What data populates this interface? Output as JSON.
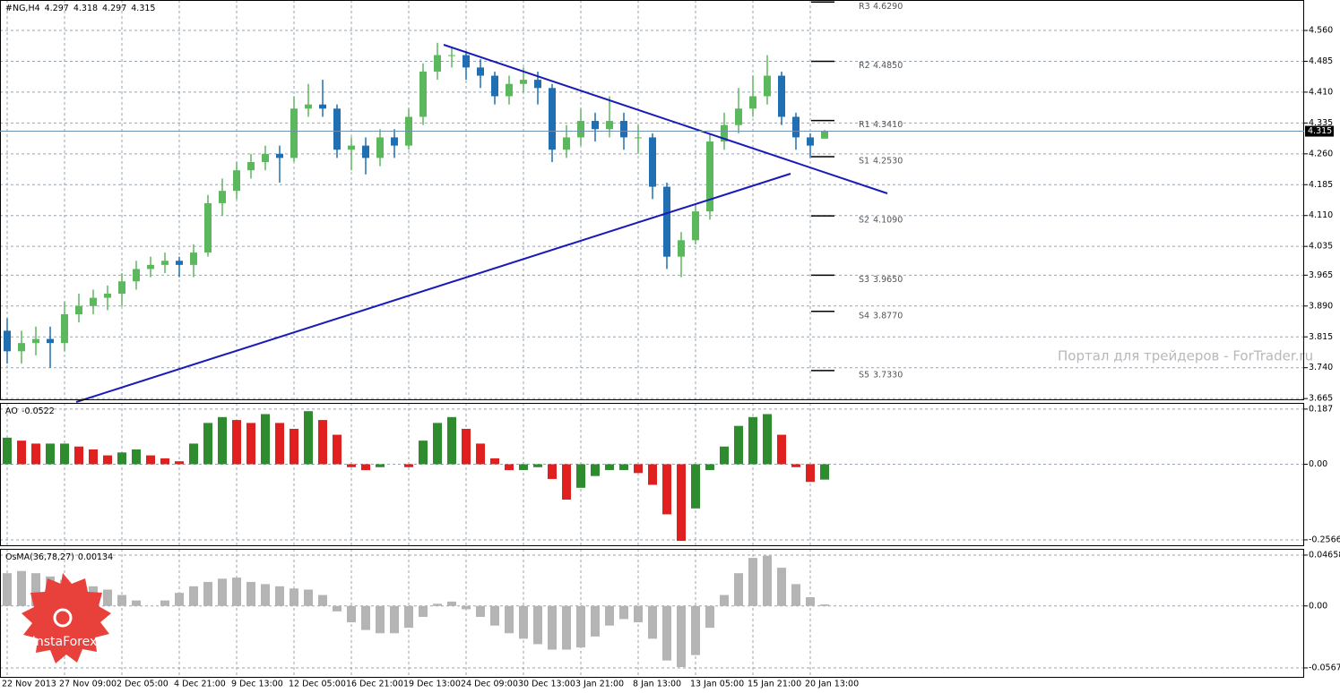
{
  "chart_data": [
    {
      "type": "candlestick",
      "title": "#NG,H4",
      "categories": [
        "22 Nov 2013",
        null,
        null,
        null,
        "27 Nov 09:00",
        null,
        null,
        null,
        "2 Dec 05:00",
        null,
        null,
        null,
        "4 Dec 21:00",
        null,
        null,
        null,
        "9 Dec 13:00",
        null,
        null,
        null,
        "12 Dec 05:00",
        null,
        null,
        null,
        "16 Dec 21:00",
        null,
        null,
        null,
        "19 Dec 13:00",
        null,
        null,
        null,
        "24 Dec 09:00",
        null,
        null,
        null,
        "30 Dec 13:00",
        null,
        null,
        null,
        "3 Jan 21:00",
        null,
        null,
        null,
        "8 Jan 13:00",
        null,
        null,
        null,
        "13 Jan 05:00",
        null,
        null,
        null,
        "15 Jan 21:00",
        null,
        null,
        null,
        "20 Jan 13:00",
        null
      ],
      "open": [
        3.83,
        3.78,
        3.8,
        3.81,
        3.8,
        3.87,
        3.89,
        3.91,
        3.92,
        3.95,
        3.98,
        3.99,
        4.0,
        3.99,
        4.02,
        4.14,
        4.17,
        4.22,
        4.24,
        4.26,
        4.25,
        4.37,
        4.38,
        4.37,
        4.27,
        4.28,
        4.25,
        4.3,
        4.28,
        4.35,
        4.46,
        4.5,
        4.5,
        4.47,
        4.45,
        4.4,
        4.43,
        4.44,
        4.42,
        4.27,
        4.3,
        4.34,
        4.32,
        4.34,
        4.3,
        4.3,
        4.18,
        4.01,
        4.05,
        4.12,
        4.29,
        4.33,
        4.37,
        4.4,
        4.45,
        4.35,
        4.3,
        4.297
      ],
      "high": [
        3.86,
        3.83,
        3.84,
        3.84,
        3.9,
        3.92,
        3.93,
        3.94,
        3.97,
        4.0,
        4.01,
        4.02,
        4.01,
        4.04,
        4.16,
        4.2,
        4.24,
        4.26,
        4.28,
        4.28,
        4.4,
        4.43,
        4.44,
        4.38,
        4.3,
        4.3,
        4.32,
        4.32,
        4.37,
        4.48,
        4.53,
        4.52,
        4.51,
        4.49,
        4.46,
        4.45,
        4.47,
        4.46,
        4.43,
        4.33,
        4.37,
        4.36,
        4.4,
        4.36,
        4.33,
        4.31,
        4.19,
        4.07,
        4.14,
        4.31,
        4.36,
        4.42,
        4.45,
        4.5,
        4.46,
        4.36,
        4.31,
        4.318
      ],
      "low": [
        3.75,
        3.75,
        3.77,
        3.74,
        3.78,
        3.85,
        3.87,
        3.88,
        3.89,
        3.93,
        3.96,
        3.97,
        3.96,
        3.96,
        4.01,
        4.11,
        4.15,
        4.2,
        4.22,
        4.19,
        4.24,
        4.35,
        4.35,
        4.25,
        4.22,
        4.21,
        4.23,
        4.25,
        4.27,
        4.33,
        4.44,
        4.47,
        4.44,
        4.42,
        4.38,
        4.38,
        4.41,
        4.38,
        4.24,
        4.25,
        4.28,
        4.29,
        4.3,
        4.27,
        4.26,
        4.15,
        3.98,
        3.96,
        4.04,
        4.1,
        4.27,
        4.31,
        4.35,
        4.38,
        4.33,
        4.27,
        4.25,
        4.297
      ],
      "close": [
        3.78,
        3.8,
        3.81,
        3.8,
        3.87,
        3.89,
        3.91,
        3.92,
        3.95,
        3.98,
        3.99,
        4.0,
        3.99,
        4.02,
        4.14,
        4.17,
        4.22,
        4.24,
        4.26,
        4.25,
        4.37,
        4.38,
        4.37,
        4.27,
        4.28,
        4.25,
        4.3,
        4.28,
        4.35,
        4.46,
        4.5,
        4.5,
        4.47,
        4.45,
        4.4,
        4.43,
        4.44,
        4.42,
        4.27,
        4.3,
        4.34,
        4.32,
        4.34,
        4.3,
        4.3,
        4.18,
        4.01,
        4.05,
        4.12,
        4.29,
        4.33,
        4.37,
        4.4,
        4.45,
        4.35,
        4.3,
        4.28,
        4.315
      ],
      "up_color": "#5cb85c",
      "down_color": "#1f6fb2",
      "ylim": [
        3.661,
        4.634
      ],
      "yticks": [
        {
          "value": 4.56,
          "label": "4.560"
        },
        4.485,
        {
          "value": 4.41,
          "label": "4.410"
        },
        4.335,
        {
          "value": 4.26,
          "label": "4.260"
        },
        4.185,
        {
          "value": 4.11,
          "label": "4.110"
        },
        4.035,
        3.965,
        {
          "value": 3.89,
          "label": "3.890"
        },
        3.815,
        {
          "value": 3.74,
          "label": "3.740"
        },
        3.665
      ],
      "grid": true,
      "current_price": 4.315,
      "pivots": [
        {
          "name": "R3",
          "value": 4.629,
          "label": "4.6290"
        },
        {
          "name": "R2",
          "value": 4.485,
          "label": "4.4850"
        },
        {
          "name": "R1",
          "value": 4.341,
          "label": "4.3410"
        },
        {
          "name": "S1",
          "value": 4.253,
          "label": "4.2530"
        },
        {
          "name": "S2",
          "value": 4.109,
          "label": "4.1090"
        },
        {
          "name": "S3",
          "value": 3.965,
          "label": "3.9650"
        },
        {
          "name": "S4",
          "value": 3.877,
          "label": "3.8770"
        },
        {
          "name": "S5",
          "value": 3.733,
          "label": "3.7330"
        }
      ]
    },
    {
      "type": "bar",
      "title": "AO",
      "values": [
        0.09,
        0.08,
        0.07,
        0.07,
        0.07,
        0.06,
        0.05,
        0.03,
        0.04,
        0.05,
        0.03,
        0.02,
        0.01,
        0.07,
        0.14,
        0.16,
        0.15,
        0.14,
        0.17,
        0.14,
        0.12,
        0.18,
        0.15,
        0.1,
        -0.01,
        -0.02,
        -0.01,
        0.0,
        -0.01,
        0.08,
        0.14,
        0.16,
        0.12,
        0.07,
        0.02,
        -0.02,
        -0.02,
        -0.01,
        -0.05,
        -0.12,
        -0.08,
        -0.04,
        -0.02,
        -0.02,
        -0.03,
        -0.07,
        -0.17,
        -0.26,
        -0.15,
        -0.02,
        0.06,
        0.13,
        0.16,
        0.17,
        0.1,
        -0.01,
        -0.06,
        -0.0522
      ],
      "up_color": "#2e8b2e",
      "down_color": "#e0201f",
      "ylim": [
        -0.278,
        0.208
      ],
      "yticks": [
        0.187,
        {
          "value": 0,
          "label": "0.00"
        },
        -0.2566
      ]
    },
    {
      "type": "bar",
      "title": "OsMA(36,78,27)",
      "values": [
        0.03,
        0.032,
        0.03,
        0.027,
        0.024,
        0.02,
        0.018,
        0.015,
        0.01,
        0.005,
        0.0,
        0.005,
        0.012,
        0.018,
        0.022,
        0.025,
        0.026,
        0.022,
        0.02,
        0.018,
        0.016,
        0.015,
        0.01,
        -0.005,
        -0.015,
        -0.022,
        -0.025,
        -0.025,
        -0.02,
        -0.01,
        0.002,
        0.004,
        -0.003,
        -0.01,
        -0.018,
        -0.025,
        -0.03,
        -0.035,
        -0.04,
        -0.04,
        -0.038,
        -0.028,
        -0.018,
        -0.012,
        -0.015,
        -0.03,
        -0.05,
        -0.056,
        -0.045,
        -0.02,
        0.01,
        0.03,
        0.044,
        0.046,
        0.035,
        0.02,
        0.008,
        0.00134
      ],
      "color": "#b4b4b4",
      "ylim": [
        -0.0658,
        0.0523
      ],
      "yticks": [
        0.04658,
        {
          "value": 0,
          "label": "0.00"
        },
        -0.05676
      ]
    }
  ],
  "watermark": "Портал для трейдеров - ForTrader.ru",
  "logo": "InstaForex"
}
